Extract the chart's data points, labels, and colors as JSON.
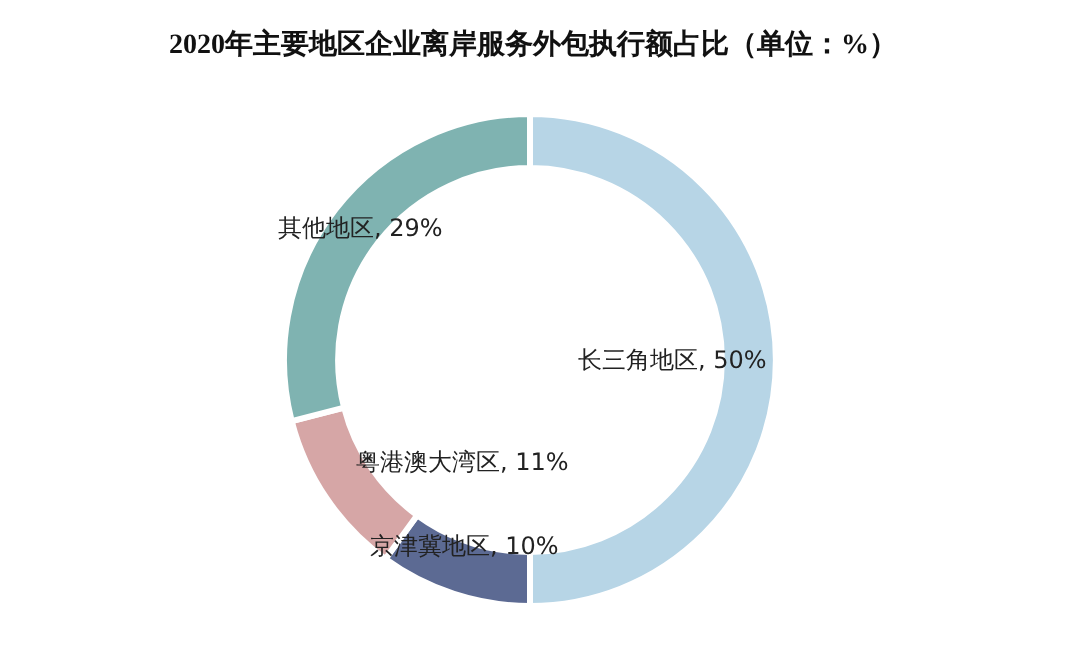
{
  "chart_data": {
    "type": "donut",
    "title": "2020年主要地区企业离岸服务外包执行额占比（单位：%）",
    "categories": [
      "长三角地区",
      "京津冀地区",
      "粤港澳大湾区",
      "其他地区"
    ],
    "values": [
      50,
      10,
      11,
      29
    ],
    "value_labels": [
      "50%",
      "10%",
      "11%",
      "29%"
    ],
    "colors": [
      "#b7d5e6",
      "#5c6a93",
      "#d6a6a6",
      "#7fb3b1"
    ],
    "legend": false
  }
}
